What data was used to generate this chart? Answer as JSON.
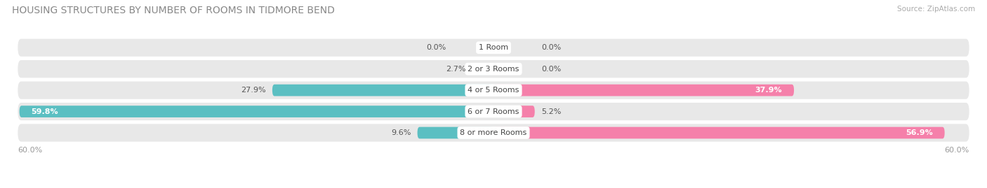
{
  "title": "HOUSING STRUCTURES BY NUMBER OF ROOMS IN TIDMORE BEND",
  "source": "Source: ZipAtlas.com",
  "categories": [
    "1 Room",
    "2 or 3 Rooms",
    "4 or 5 Rooms",
    "6 or 7 Rooms",
    "8 or more Rooms"
  ],
  "owner_values": [
    0.0,
    2.7,
    27.9,
    59.8,
    9.6
  ],
  "renter_values": [
    0.0,
    0.0,
    37.9,
    5.2,
    56.9
  ],
  "owner_color": "#5bbfc2",
  "renter_color": "#f580aa",
  "bar_bg_color": "#e8e8e8",
  "bar_height": 0.55,
  "xlim": 60.0,
  "title_fontsize": 10,
  "label_fontsize": 8,
  "tick_fontsize": 8,
  "legend_fontsize": 8.5,
  "background_color": "#ffffff",
  "figsize": [
    14.06,
    2.69
  ],
  "dpi": 100
}
